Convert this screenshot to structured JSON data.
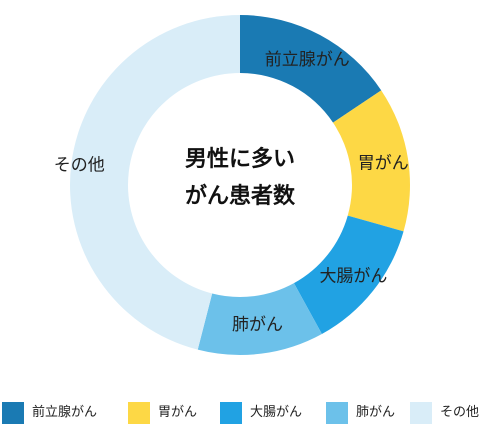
{
  "chart_data": {
    "type": "pie",
    "title": "男性に多い\nがん患者数",
    "title_lines": [
      "男性に多い",
      "がん患者数"
    ],
    "categories": [
      "前立腺がん",
      "胃がん",
      "大腸がん",
      "肺がん",
      "その他"
    ],
    "values": [
      15.6,
      13.8,
      12.6,
      12.0,
      46.0
    ],
    "colors": [
      "#1a7ab3",
      "#fdd845",
      "#21a2e3",
      "#6cc1ea",
      "#d9edf8"
    ],
    "legend_position": "bottom"
  }
}
